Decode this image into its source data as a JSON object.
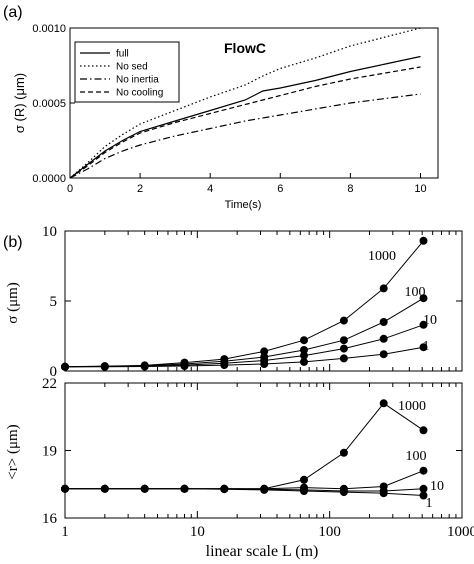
{
  "chart_data": [
    {
      "type": "line",
      "panel_label": "(a)",
      "title": "FlowC",
      "xlabel": "Time(s)",
      "ylabel": "σ (R) (μm)",
      "xlim": [
        0,
        10.5
      ],
      "ylim": [
        0,
        0.001
      ],
      "xticks": [
        "0",
        "2",
        "4",
        "6",
        "8",
        "10"
      ],
      "yticks": [
        "0.0000",
        "0.0005",
        "0.0010"
      ],
      "legend_position": "top-left",
      "grid": false,
      "series": [
        {
          "name": "full",
          "dash": "solid",
          "points": [
            [
              0,
              0
            ],
            [
              0.5,
              9e-05
            ],
            [
              1,
              0.00018
            ],
            [
              1.5,
              0.00025
            ],
            [
              2,
              0.00031
            ],
            [
              3,
              0.00038
            ],
            [
              4,
              0.00045
            ],
            [
              5,
              0.00052
            ],
            [
              5.5,
              0.00058
            ],
            [
              6,
              0.0006
            ],
            [
              7,
              0.00065
            ],
            [
              8,
              0.00071
            ],
            [
              9,
              0.00076
            ],
            [
              10,
              0.00081
            ]
          ]
        },
        {
          "name": "No sed",
          "dash": "dotted",
          "points": [
            [
              0,
              0
            ],
            [
              0.5,
              0.0001
            ],
            [
              1,
              0.00021
            ],
            [
              1.5,
              0.00029
            ],
            [
              2,
              0.00036
            ],
            [
              3,
              0.00045
            ],
            [
              4,
              0.00054
            ],
            [
              5,
              0.00062
            ],
            [
              5.5,
              0.00068
            ],
            [
              6,
              0.00073
            ],
            [
              7,
              0.0008
            ],
            [
              8,
              0.00088
            ],
            [
              9,
              0.00094
            ],
            [
              10,
              0.001
            ]
          ]
        },
        {
          "name": "No inertia",
          "dash": "dashdot",
          "points": [
            [
              0,
              0
            ],
            [
              0.5,
              6e-05
            ],
            [
              1,
              0.00013
            ],
            [
              1.5,
              0.00018
            ],
            [
              2,
              0.00022
            ],
            [
              3,
              0.00028
            ],
            [
              4,
              0.00033
            ],
            [
              5,
              0.00038
            ],
            [
              6,
              0.00042
            ],
            [
              7,
              0.00046
            ],
            [
              8,
              0.0005
            ],
            [
              9,
              0.00053
            ],
            [
              10,
              0.00056
            ]
          ]
        },
        {
          "name": "No cooling",
          "dash": "dashed",
          "points": [
            [
              0,
              0
            ],
            [
              0.5,
              8e-05
            ],
            [
              1,
              0.00017
            ],
            [
              1.5,
              0.00024
            ],
            [
              2,
              0.0003
            ],
            [
              3,
              0.00037
            ],
            [
              4,
              0.00043
            ],
            [
              5,
              0.00049
            ],
            [
              6,
              0.00055
            ],
            [
              7,
              0.00061
            ],
            [
              8,
              0.00066
            ],
            [
              9,
              0.0007
            ],
            [
              10,
              0.00074
            ]
          ]
        }
      ]
    },
    {
      "type": "line",
      "panel_label": "(b)",
      "ylabel": "σ (μm)",
      "xscale": "log",
      "xlim": [
        1,
        1000
      ],
      "ylim": [
        0,
        10
      ],
      "yticks": [
        "0",
        "5",
        "10"
      ],
      "marker": "filled-circle",
      "x": [
        1,
        2,
        4,
        8,
        16,
        32,
        64,
        128,
        256,
        512
      ],
      "series": [
        {
          "name": "1000",
          "values": [
            0.3,
            0.35,
            0.4,
            0.6,
            0.85,
            1.4,
            2.2,
            3.6,
            5.9,
            9.3
          ]
        },
        {
          "name": "100",
          "values": [
            0.3,
            0.33,
            0.38,
            0.5,
            0.7,
            1.0,
            1.5,
            2.2,
            3.5,
            5.2
          ]
        },
        {
          "name": "10",
          "values": [
            0.3,
            0.32,
            0.35,
            0.42,
            0.55,
            0.75,
            1.1,
            1.6,
            2.3,
            3.3
          ]
        },
        {
          "name": "1",
          "values": [
            0.3,
            0.3,
            0.32,
            0.36,
            0.42,
            0.5,
            0.65,
            0.9,
            1.2,
            1.7
          ]
        }
      ]
    },
    {
      "type": "line",
      "ylabel": "<r> (μm)",
      "xlabel": "linear scale L (m)",
      "xscale": "log",
      "xlim": [
        1,
        1000
      ],
      "ylim": [
        16,
        22
      ],
      "xticks": [
        "1",
        "10",
        "100",
        "1000"
      ],
      "yticks": [
        "16",
        "19",
        "22"
      ],
      "marker": "filled-circle",
      "x": [
        1,
        2,
        4,
        8,
        16,
        32,
        64,
        128,
        256,
        512
      ],
      "series": [
        {
          "name": "1000",
          "values": [
            17.3,
            17.3,
            17.3,
            17.3,
            17.3,
            17.3,
            17.7,
            18.9,
            21.1,
            19.9
          ]
        },
        {
          "name": "100",
          "values": [
            17.3,
            17.3,
            17.3,
            17.3,
            17.3,
            17.3,
            17.35,
            17.3,
            17.4,
            18.1
          ]
        },
        {
          "name": "10",
          "values": [
            17.3,
            17.3,
            17.3,
            17.3,
            17.3,
            17.28,
            17.25,
            17.2,
            17.2,
            17.3
          ]
        },
        {
          "name": "1",
          "values": [
            17.3,
            17.3,
            17.3,
            17.3,
            17.28,
            17.25,
            17.2,
            17.15,
            17.1,
            17.0
          ]
        }
      ]
    }
  ]
}
